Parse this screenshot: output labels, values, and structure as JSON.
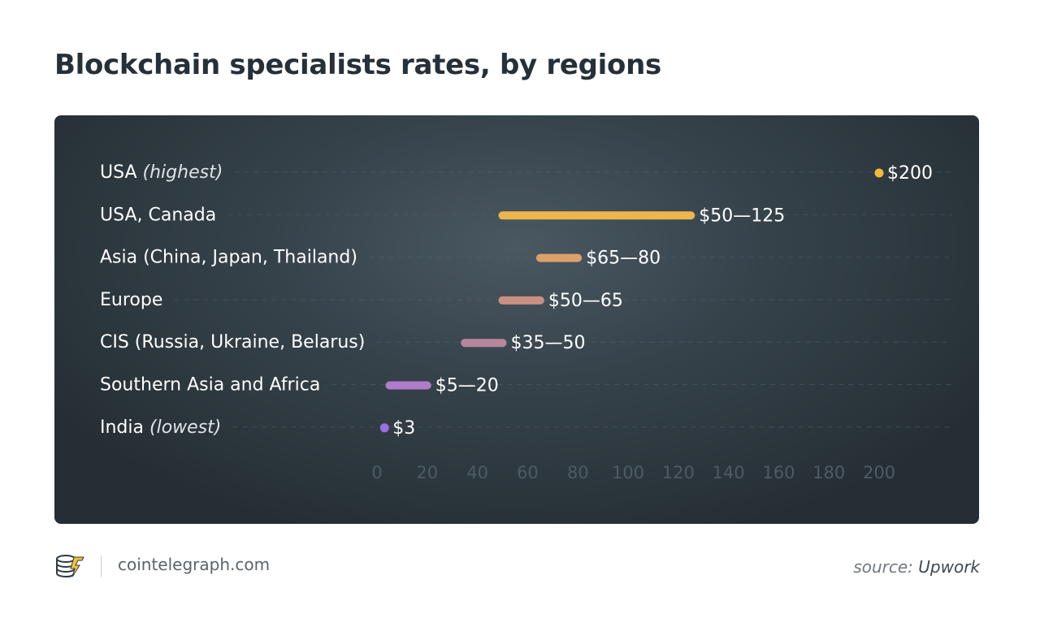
{
  "title": "Blockchain specialists rates, by regions",
  "chart_data": {
    "type": "range-bar",
    "title": "Blockchain specialists rates, by regions",
    "xlim": [
      0,
      200
    ],
    "x_ticks": [
      0,
      20,
      40,
      60,
      80,
      100,
      120,
      140,
      160,
      180,
      200
    ],
    "grid": "dashed horizontal per row",
    "rows": [
      {
        "label": "USA",
        "note": "(highest)",
        "min": 200,
        "max": 200,
        "value_label": "$200",
        "color": "#f3b93a"
      },
      {
        "label": "USA, Canada",
        "note": "",
        "min": 50,
        "max": 125,
        "value_label": "$50—125",
        "color": "#edb54d"
      },
      {
        "label": "Asia (China, Japan, Thailand)",
        "note": "",
        "min": 65,
        "max": 80,
        "value_label": "$65—80",
        "color": "#dca06a"
      },
      {
        "label": "Europe",
        "note": "",
        "min": 50,
        "max": 65,
        "value_label": "$50—65",
        "color": "#c99082"
      },
      {
        "label": "CIS (Russia, Ukraine, Belarus)",
        "note": "",
        "min": 35,
        "max": 50,
        "value_label": "$35—50",
        "color": "#b8869c"
      },
      {
        "label": "Southern Asia and Africa",
        "note": "",
        "min": 5,
        "max": 20,
        "value_label": "$5—20",
        "color": "#b07bc8"
      },
      {
        "label": "India",
        "note": "(lowest)",
        "min": 3,
        "max": 3,
        "value_label": "$3",
        "color": "#9a6fe0"
      }
    ]
  },
  "footer": {
    "site": "cointelegraph.com",
    "source_prefix": "source:",
    "source_name": "Upwork",
    "logo_icon": "cointelegraph-logo-icon"
  }
}
